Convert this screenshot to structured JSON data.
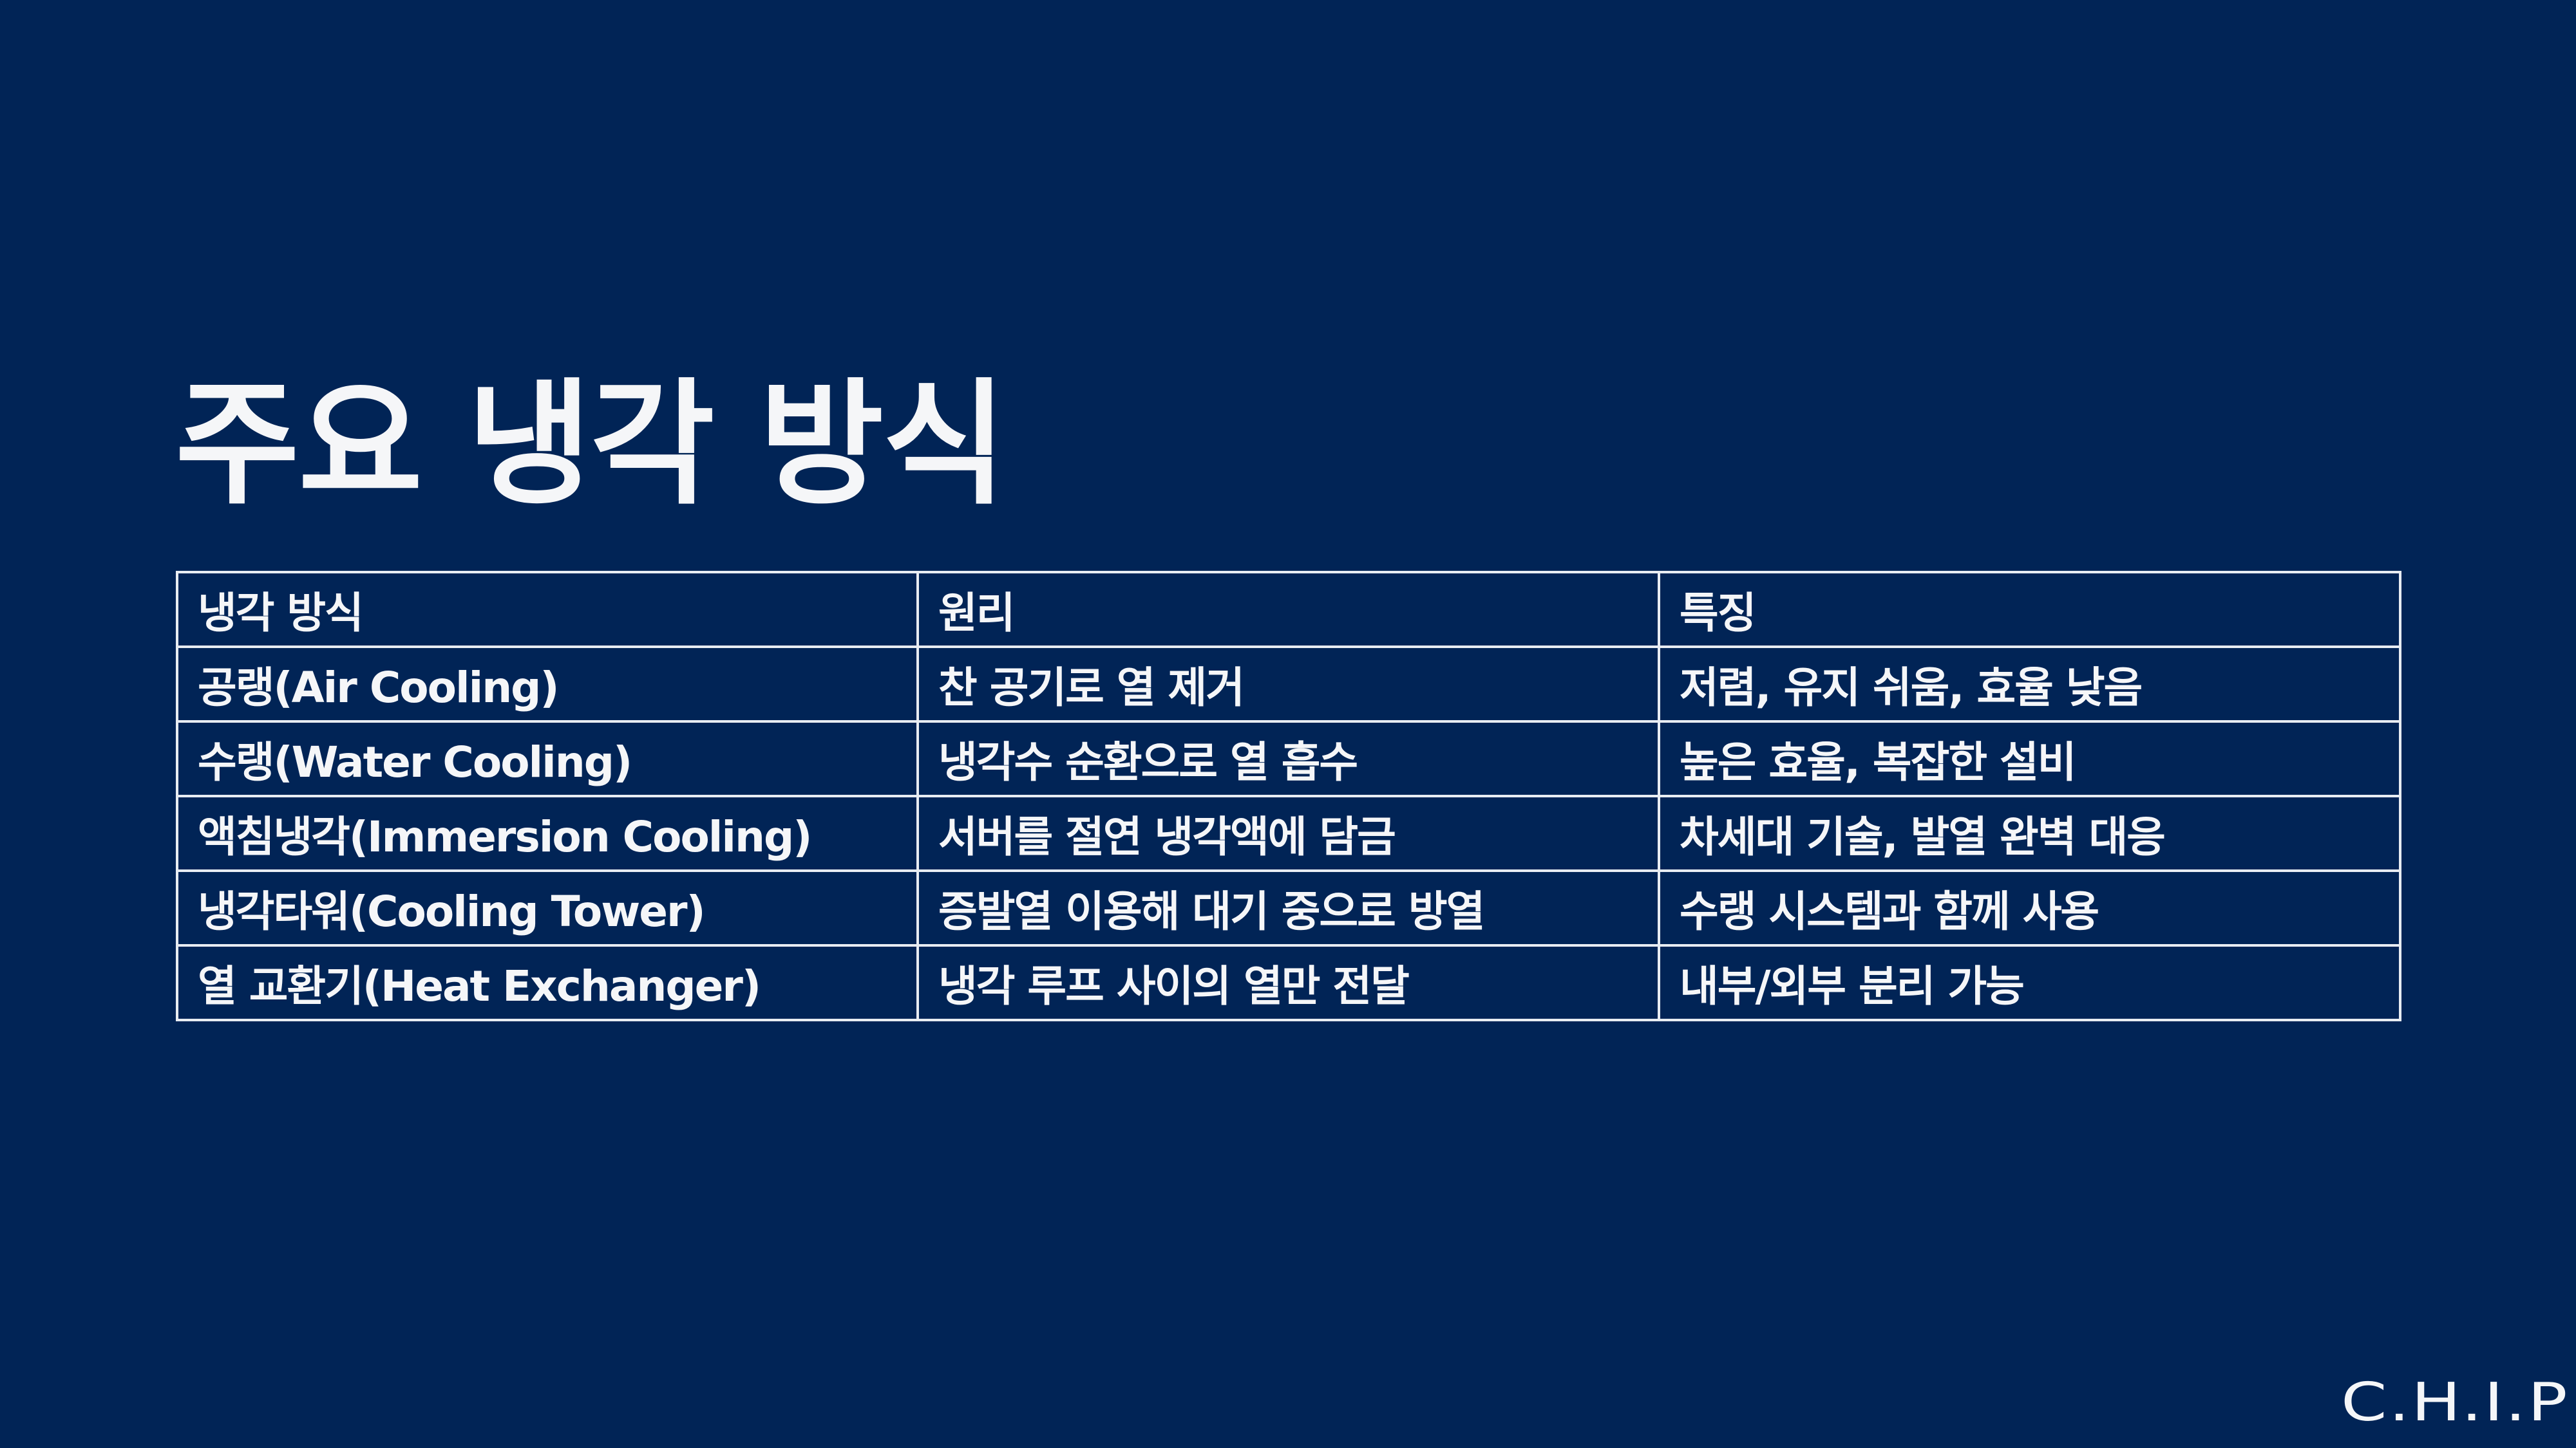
{
  "title": "주요 냉각 방식",
  "table": {
    "headers": [
      "냉각 방식",
      "원리",
      "특징"
    ],
    "rows": [
      [
        "공랭(Air Cooling)",
        "찬 공기로 열 제거",
        "저렴, 유지 쉬움, 효율 낮음"
      ],
      [
        "수랭(Water Cooling)",
        "냉각수 순환으로 열 흡수",
        "높은 효율, 복잡한 설비"
      ],
      [
        "액침냉각(Immersion Cooling)",
        "서버를 절연 냉각액에 담금",
        "차세대 기술, 발열 완벽 대응"
      ],
      [
        "냉각타워(Cooling Tower)",
        "증발열 이용해 대기 중으로 방열",
        "수랭 시스템과 함께 사용"
      ],
      [
        "열 교환기(Heat Exchanger)",
        "냉각 루프 사이의 열만 전달",
        "내부/외부 분리 가능"
      ]
    ]
  },
  "logo": "C.H.I.P",
  "colors": {
    "background": "#012456",
    "text": "#f5f6f8",
    "border": "#e8ecf2"
  }
}
